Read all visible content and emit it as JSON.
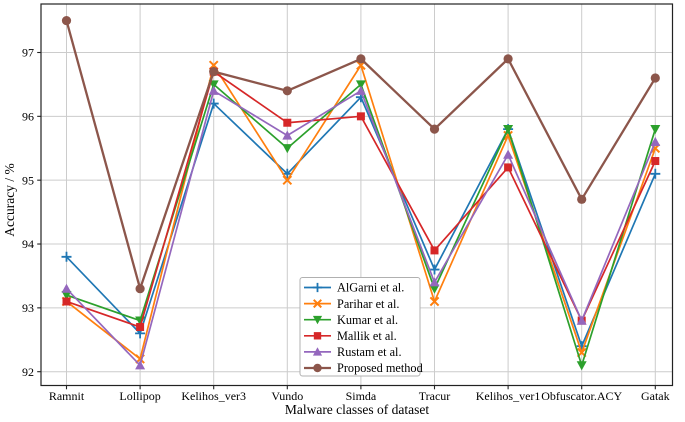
{
  "chart_data": {
    "type": "line",
    "title": "",
    "xlabel": "Malware classes of dataset",
    "ylabel": "Accuracy / %",
    "categories": [
      "Ramnit",
      "Lollipop",
      "Kelihos_ver3",
      "Vundo",
      "Simda",
      "Tracur",
      "Kelihos_ver1",
      "Obfuscator.ACY",
      "Gatak"
    ],
    "yticks": [
      92,
      93,
      94,
      95,
      96,
      97
    ],
    "ylim": [
      91.78,
      97.76
    ],
    "grid": true,
    "grid_color": "#cccccc",
    "axis_color": "#222222",
    "legend_position": "lower-center",
    "legend_border_color": "#b0b0b0",
    "legend_background": "#ffffff",
    "series": [
      {
        "name": "AlGarni et al.",
        "color": "#1f77b4",
        "marker": "plus",
        "values": [
          93.8,
          92.6,
          96.2,
          95.1,
          96.3,
          93.6,
          95.8,
          92.4,
          95.1
        ]
      },
      {
        "name": "Parihar et al.",
        "color": "#ff7f0e",
        "marker": "x",
        "values": [
          93.1,
          92.2,
          96.8,
          95.0,
          96.8,
          93.1,
          95.7,
          92.3,
          95.5
        ]
      },
      {
        "name": "Kumar et al.",
        "color": "#2ca02c",
        "marker": "triangle-down",
        "values": [
          93.2,
          92.8,
          96.5,
          95.5,
          96.5,
          93.3,
          95.8,
          92.1,
          95.8
        ]
      },
      {
        "name": "Mallik et al.",
        "color": "#d62728",
        "marker": "square",
        "values": [
          93.1,
          92.7,
          96.7,
          95.9,
          96.0,
          93.9,
          95.2,
          92.8,
          95.3
        ]
      },
      {
        "name": "Rustam et al.",
        "color": "#9467bd",
        "marker": "triangle-up",
        "values": [
          93.3,
          92.1,
          96.4,
          95.7,
          96.4,
          93.4,
          95.4,
          92.8,
          95.6
        ]
      },
      {
        "name": "Proposed method",
        "color": "#8c564b",
        "marker": "circle",
        "values": [
          97.5,
          93.3,
          96.7,
          96.4,
          96.9,
          95.8,
          96.9,
          94.7,
          96.6
        ]
      }
    ]
  }
}
